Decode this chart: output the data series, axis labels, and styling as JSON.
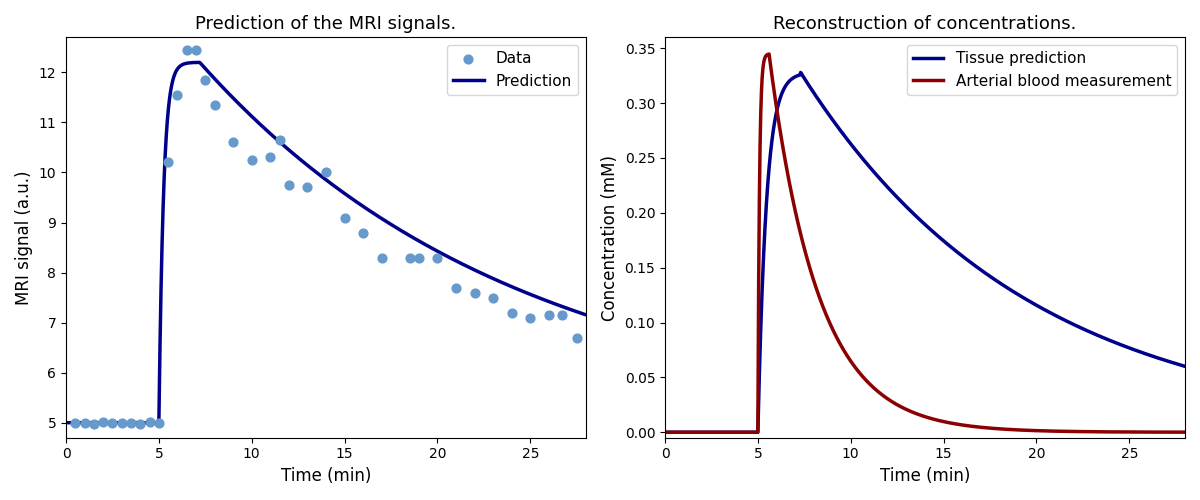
{
  "title_left": "Prediction of the MRI signals.",
  "title_right": "Reconstruction of concentrations.",
  "xlabel": "Time (min)",
  "ylabel_left": "MRI signal (a.u.)",
  "ylabel_right": "Concentration (mM)",
  "scatter_color": "#6699CC",
  "scatter_label": "Data",
  "prediction_color": "#00008B",
  "prediction_label": "Prediction",
  "tissue_color": "#00008B",
  "tissue_label": "Tissue prediction",
  "arterial_color": "#8B0000",
  "arterial_label": "Arterial blood measurement",
  "scatter_x": [
    0.5,
    1.0,
    1.5,
    2.0,
    2.5,
    3.0,
    3.5,
    4.0,
    4.5,
    5.0,
    5.5,
    6.0,
    6.5,
    7.0,
    7.5,
    8.0,
    9.0,
    10.0,
    11.0,
    11.5,
    12.0,
    13.0,
    14.0,
    15.0,
    16.0,
    17.0,
    18.5,
    19.0,
    20.0,
    21.0,
    22.0,
    23.0,
    24.0,
    25.0,
    26.0,
    26.7,
    27.5
  ],
  "scatter_y": [
    5.0,
    5.0,
    4.98,
    5.01,
    4.99,
    5.0,
    5.0,
    4.98,
    5.01,
    5.0,
    10.2,
    11.55,
    12.45,
    12.45,
    11.85,
    11.35,
    10.6,
    10.25,
    10.3,
    10.65,
    9.75,
    9.7,
    10.0,
    9.1,
    8.8,
    8.3,
    8.3,
    8.3,
    8.3,
    7.7,
    7.6,
    7.5,
    7.2,
    7.1,
    7.15,
    7.15,
    6.7
  ],
  "xlim_left": [
    0,
    28
  ],
  "ylim_left": [
    4.7,
    12.7
  ],
  "xlim_right": [
    0,
    28
  ],
  "ylim_right": [
    -0.005,
    0.36
  ],
  "figsize": [
    12,
    5
  ],
  "dpi": 100,
  "mri_baseline": 5.0,
  "mri_peak": 12.2,
  "mri_t_start": 5.0,
  "mri_t_peak": 7.2,
  "mri_rise_rate": 4.0,
  "mri_decay_rate": 0.058,
  "art_t_start": 5.0,
  "art_peak": 0.345,
  "art_t_peak": 5.6,
  "art_rise_rate": 12.0,
  "art_decay_rate": 0.38,
  "tis_t_start": 5.0,
  "tis_peak": 0.328,
  "tis_t_peak": 7.3,
  "tis_rise_rate": 2.2,
  "tis_decay_alpha": 0.082
}
